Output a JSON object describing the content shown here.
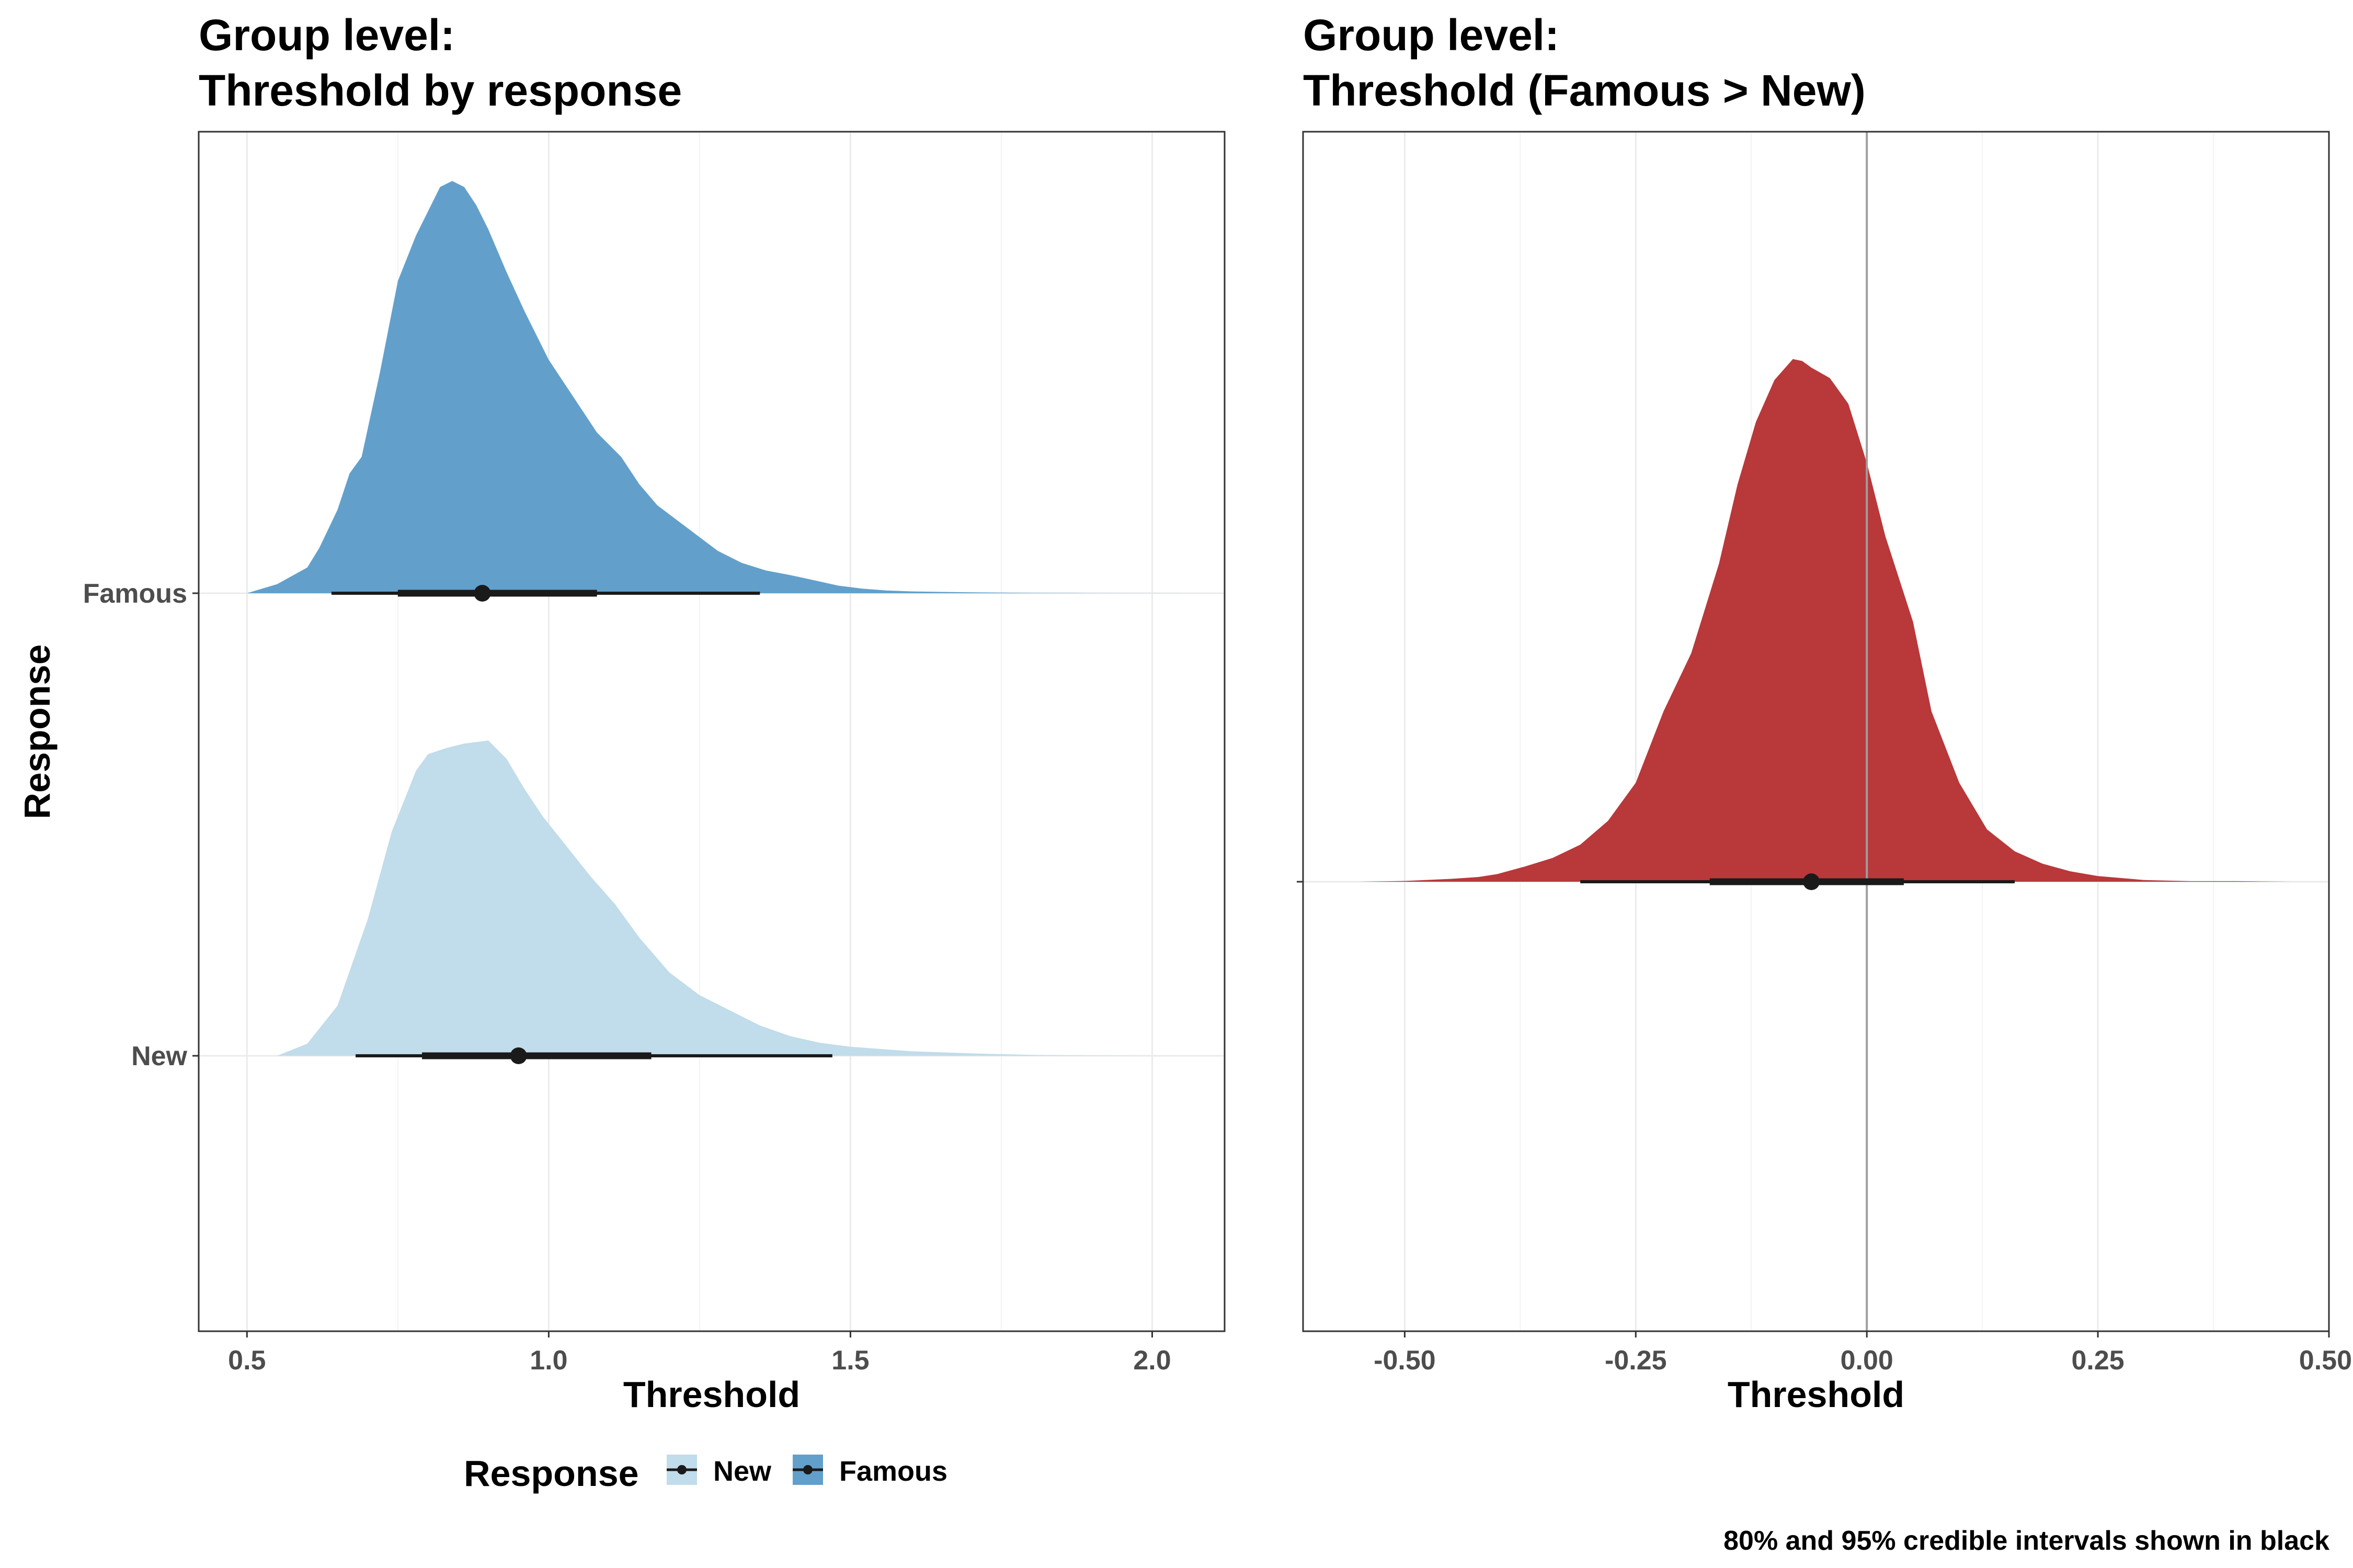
{
  "chart_data": [
    {
      "type": "density",
      "title_line1": "Group level:",
      "title_line2": "Threshold by response",
      "xlabel": "Threshold",
      "ylabel": "Response",
      "xlim": [
        0.42,
        2.12
      ],
      "x_ticks": [
        "0.5",
        "1.0",
        "1.5",
        "2.0"
      ],
      "x_tick_values": [
        0.5,
        1.0,
        1.5,
        2.0
      ],
      "categories": [
        "New",
        "Famous"
      ],
      "legend": {
        "title": "Response",
        "position": "bottom",
        "items": [
          "New",
          "Famous"
        ]
      },
      "grid": true,
      "series": [
        {
          "name": "Famous",
          "color": "#62a0cb",
          "x": [
            0.5,
            0.55,
            0.6,
            0.62,
            0.65,
            0.67,
            0.69,
            0.72,
            0.75,
            0.78,
            0.8,
            0.82,
            0.84,
            0.86,
            0.88,
            0.9,
            0.93,
            0.96,
            1.0,
            1.04,
            1.08,
            1.12,
            1.15,
            1.18,
            1.22,
            1.25,
            1.28,
            1.32,
            1.36,
            1.4,
            1.44,
            1.48,
            1.52,
            1.56,
            1.6,
            1.7,
            1.8,
            1.9,
            2.0,
            2.1
          ],
          "density": [
            0.0,
            0.06,
            0.17,
            0.3,
            0.55,
            0.79,
            0.9,
            1.45,
            2.06,
            2.36,
            2.52,
            2.68,
            2.72,
            2.68,
            2.56,
            2.4,
            2.12,
            1.86,
            1.54,
            1.3,
            1.06,
            0.9,
            0.72,
            0.58,
            0.46,
            0.37,
            0.28,
            0.2,
            0.15,
            0.12,
            0.085,
            0.05,
            0.03,
            0.018,
            0.012,
            0.006,
            0.002,
            0.001,
            0.0005,
            0.0
          ],
          "median": 0.89,
          "ci80": [
            0.75,
            1.08
          ],
          "ci95": [
            0.64,
            1.35
          ]
        },
        {
          "name": "New",
          "color": "#c1dcea",
          "x": [
            0.55,
            0.6,
            0.65,
            0.7,
            0.74,
            0.78,
            0.8,
            0.83,
            0.86,
            0.9,
            0.93,
            0.96,
            0.99,
            1.03,
            1.07,
            1.11,
            1.15,
            1.2,
            1.25,
            1.3,
            1.35,
            1.4,
            1.45,
            1.5,
            1.55,
            1.6,
            1.7,
            1.8,
            1.9,
            2.0,
            2.05
          ],
          "density": [
            0.0,
            0.08,
            0.33,
            0.9,
            1.48,
            1.88,
            1.99,
            2.03,
            2.06,
            2.08,
            1.96,
            1.76,
            1.58,
            1.38,
            1.18,
            1.0,
            0.78,
            0.55,
            0.4,
            0.3,
            0.2,
            0.13,
            0.085,
            0.06,
            0.045,
            0.03,
            0.016,
            0.006,
            0.002,
            0.0005,
            0.0
          ],
          "median": 0.95,
          "ci80": [
            0.79,
            1.17
          ],
          "ci95": [
            0.68,
            1.47
          ]
        }
      ]
    },
    {
      "type": "density",
      "title_line1": "Group level:",
      "title_line2": "Threshold (Famous > New)",
      "xlabel": "Threshold",
      "xlim": [
        -0.61,
        0.5
      ],
      "x_ticks": [
        "-0.50",
        "-0.25",
        "0.00",
        "0.25",
        "0.50"
      ],
      "x_tick_values": [
        -0.5,
        -0.25,
        0.0,
        0.25,
        0.5
      ],
      "vline_at": 0.0,
      "grid": true,
      "series": [
        {
          "name": "Famous > New",
          "color": "#b9383a",
          "x": [
            -0.55,
            -0.5,
            -0.45,
            -0.42,
            -0.4,
            -0.37,
            -0.34,
            -0.31,
            -0.28,
            -0.25,
            -0.22,
            -0.19,
            -0.16,
            -0.14,
            -0.12,
            -0.1,
            -0.08,
            -0.07,
            -0.06,
            -0.04,
            -0.02,
            0.0,
            0.02,
            0.05,
            0.07,
            0.1,
            0.13,
            0.16,
            0.19,
            0.22,
            0.25,
            0.3,
            0.35,
            0.4,
            0.42,
            0.46
          ],
          "density": [
            0.0,
            0.008,
            0.03,
            0.05,
            0.08,
            0.16,
            0.25,
            0.39,
            0.64,
            1.04,
            1.79,
            2.4,
            3.34,
            4.17,
            4.83,
            5.27,
            5.49,
            5.47,
            5.4,
            5.29,
            5.02,
            4.4,
            3.63,
            2.73,
            1.79,
            1.04,
            0.55,
            0.32,
            0.19,
            0.11,
            0.06,
            0.018,
            0.006,
            0.006,
            0.004,
            0.0
          ],
          "median": -0.06,
          "ci80": [
            -0.17,
            0.04
          ],
          "ci95": [
            -0.31,
            0.16
          ]
        }
      ]
    }
  ],
  "caption": "80% and 95% credible intervals shown in black"
}
